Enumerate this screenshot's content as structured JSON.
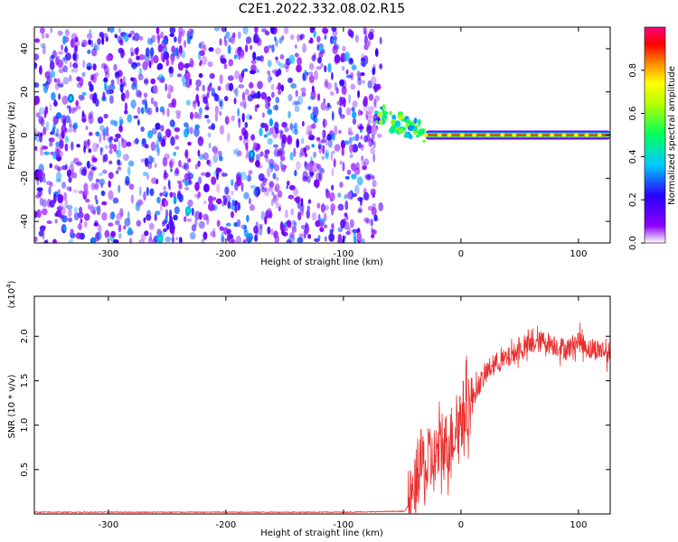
{
  "figure_title": "C2E1.2022.332.08.02.R15",
  "chart_data": [
    {
      "type": "heatmap",
      "title": "C2E1.2022.332.08.02.R15",
      "xlabel": "Height of straight line (km)",
      "ylabel": "Frequency (Hz)",
      "xlim": [
        -363,
        127
      ],
      "ylim": [
        -50,
        50
      ],
      "xticks": [
        -300,
        -200,
        -100,
        0,
        100
      ],
      "xtick_labels": [
        "-300",
        "-200",
        "-100",
        "0",
        "100"
      ],
      "yticks": [
        -40,
        -20,
        0,
        20,
        40
      ],
      "ytick_labels": [
        "-40",
        "-20",
        "0",
        "20",
        "40"
      ],
      "colorbar": {
        "label": "Normalized spectral amplitude",
        "range": [
          0,
          1
        ],
        "ticks": [
          0.0,
          0.2,
          0.4,
          0.6,
          0.8
        ],
        "tick_labels": [
          "0.0",
          "0.2",
          "0.4",
          "0.6",
          "0.8"
        ],
        "colormap": [
          "#ffffff",
          "#8a00ff",
          "#2a00ff",
          "#00c8ff",
          "#00ff60",
          "#b0ff00",
          "#ffff00",
          "#ff8000",
          "#ff0000",
          "#ff0080"
        ]
      },
      "features": {
        "noise_region_x": [
          -363,
          -68
        ],
        "transition_x": [
          -72,
          -30
        ],
        "carrier_line": {
          "x": [
            -30,
            127
          ],
          "frequency_hz": 0,
          "peak_amplitude": 0.9
        },
        "noise_speckle_amplitude_range": [
          0.05,
          0.35
        ],
        "hot_spots": [
          {
            "x": -332,
            "y": 17,
            "amplitude": 0.3
          },
          {
            "x": -178,
            "y": -9,
            "amplitude": 0.3
          },
          {
            "x": -232,
            "y": -35,
            "amplitude": 0.35
          },
          {
            "x": -256,
            "y": -48,
            "amplitude": 0.35
          }
        ]
      }
    },
    {
      "type": "line",
      "xlabel": "Height of straight line (km)",
      "ylabel": "SNR (10 * v/v)",
      "scale_label_base": "(x10",
      "scale_label_exp": "4",
      "scale_label_close": ")",
      "xlim": [
        -363,
        127
      ],
      "ylim": [
        0,
        2.45
      ],
      "xticks": [
        -300,
        -200,
        -100,
        0,
        100
      ],
      "xtick_labels": [
        "-300",
        "-200",
        "-100",
        "0",
        "100"
      ],
      "yticks": [
        0.5,
        1.0,
        1.5,
        2.0
      ],
      "ytick_labels": [
        "0.5",
        "1.0",
        "1.5",
        "2.0"
      ],
      "color": "#e83030",
      "series": [
        {
          "name": "SNR",
          "x": [
            -363,
            -100,
            -48,
            -40,
            -36,
            -33,
            -30,
            -27,
            -23,
            -20,
            -15,
            -10,
            -5,
            0,
            5,
            10,
            15,
            20,
            25,
            30,
            40,
            50,
            60,
            70,
            80,
            90,
            100,
            110,
            120,
            127
          ],
          "y": [
            0.02,
            0.02,
            0.03,
            0.2,
            0.5,
            0.6,
            0.45,
            0.55,
            0.6,
            0.7,
            0.75,
            0.8,
            0.95,
            1.1,
            1.2,
            1.3,
            1.45,
            1.55,
            1.65,
            1.7,
            1.75,
            1.85,
            1.9,
            1.95,
            1.9,
            1.85,
            1.95,
            1.85,
            1.85,
            1.8
          ],
          "noise_amplitude": 0.12
        }
      ]
    }
  ]
}
